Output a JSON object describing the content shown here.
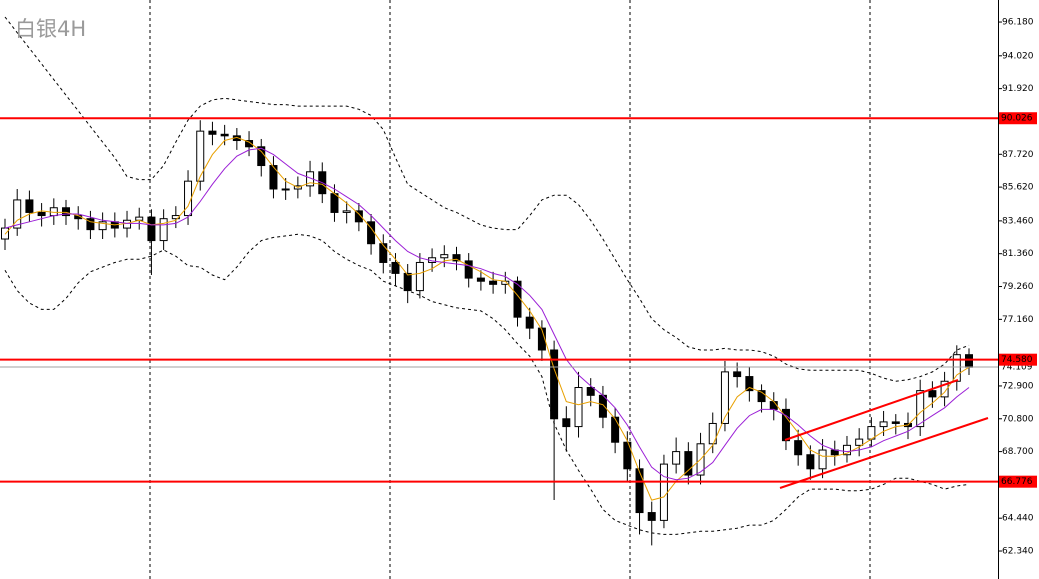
{
  "chart_data": {
    "type": "candlestick",
    "title": "白银4H",
    "ylim": [
      60.55,
      97.59
    ],
    "yticks": [
      {
        "value": 96.18,
        "label": "96.180"
      },
      {
        "value": 94.02,
        "label": "94.020"
      },
      {
        "value": 91.92,
        "label": "91.920"
      },
      {
        "value": 87.72,
        "label": "87.720"
      },
      {
        "value": 85.62,
        "label": "85.620"
      },
      {
        "value": 83.46,
        "label": "83.460"
      },
      {
        "value": 81.36,
        "label": "81.360"
      },
      {
        "value": 79.26,
        "label": "79.260"
      },
      {
        "value": 77.16,
        "label": "77.160"
      },
      {
        "value": 72.9,
        "label": "72.900"
      },
      {
        "value": 70.8,
        "label": "70.800"
      },
      {
        "value": 68.7,
        "label": "68.700"
      },
      {
        "value": 64.44,
        "label": "64.440"
      },
      {
        "value": 62.34,
        "label": "62.340"
      }
    ],
    "open": [
      82.3,
      83.0,
      84.8,
      84.0,
      83.8,
      84.3,
      83.8,
      83.6,
      82.9,
      83.4,
      83.0,
      83.5,
      83.7,
      82.2,
      83.6,
      83.8,
      86.0,
      89.2,
      89.0,
      88.9,
      88.6,
      88.2,
      87.0,
      85.5,
      85.5,
      85.7,
      86.6,
      85.2,
      84.0,
      84.1,
      83.4,
      82.0,
      80.8,
      80.1,
      79.0,
      80.8,
      81.1,
      81.3,
      80.9,
      79.8,
      79.6,
      79.4,
      79.6,
      77.3,
      76.6,
      75.2,
      70.8,
      70.3,
      72.8,
      72.3,
      70.9,
      69.3,
      67.6,
      64.8,
      64.3,
      67.9,
      68.7,
      67.2,
      69.2,
      70.5,
      73.8,
      73.5,
      72.6,
      71.9,
      71.4,
      69.4,
      68.5,
      67.6,
      68.8,
      68.5,
      69.1,
      69.5,
      70.3,
      70.6,
      70.5,
      70.3,
      72.6,
      72.2,
      73.2,
      74.9
    ],
    "high": [
      83.6,
      85.5,
      85.4,
      84.6,
      84.9,
      84.8,
      84.4,
      84.1,
      84.0,
      84.0,
      84.1,
      84.3,
      84.2,
      84.2,
      84.4,
      86.7,
      89.9,
      89.8,
      89.6,
      89.4,
      89.2,
      88.7,
      87.6,
      86.2,
      86.3,
      87.3,
      87.2,
      85.8,
      84.7,
      84.6,
      83.9,
      82.6,
      81.4,
      80.7,
      81.4,
      81.7,
      81.9,
      81.8,
      81.4,
      80.3,
      80.2,
      80.2,
      79.9,
      77.9,
      77.1,
      75.8,
      71.6,
      73.8,
      73.4,
      72.9,
      71.5,
      70.0,
      68.2,
      65.5,
      68.5,
      69.6,
      69.3,
      69.9,
      71.2,
      74.5,
      74.4,
      74.1,
      73.0,
      72.5,
      72.1,
      70.1,
      69.1,
      69.5,
      69.4,
      69.7,
      70.2,
      70.9,
      71.3,
      71.1,
      71.2,
      73.3,
      73.2,
      73.8,
      75.5,
      75.3
    ],
    "low": [
      81.6,
      82.5,
      83.4,
      83.1,
      83.2,
      83.2,
      82.9,
      82.3,
      82.3,
      82.4,
      82.4,
      82.9,
      80.0,
      81.6,
      83.0,
      83.2,
      85.4,
      88.3,
      88.3,
      88.0,
      87.6,
      86.3,
      84.9,
      84.8,
      84.9,
      85.0,
      84.6,
      83.4,
      83.3,
      82.8,
      81.3,
      80.1,
      79.3,
      78.2,
      78.5,
      80.2,
      80.5,
      80.3,
      79.2,
      79.0,
      78.8,
      78.8,
      76.7,
      75.9,
      74.5,
      65.6,
      68.7,
      69.6,
      71.6,
      70.2,
      68.6,
      66.8,
      63.4,
      62.7,
      63.8,
      67.3,
      66.6,
      66.6,
      68.6,
      70.0,
      72.8,
      71.9,
      71.2,
      70.7,
      68.8,
      67.8,
      66.9,
      67.0,
      67.8,
      68.0,
      68.4,
      69.0,
      69.7,
      69.8,
      69.5,
      69.7,
      71.5,
      71.6,
      72.6,
      73.6
    ],
    "close": [
      83.0,
      84.8,
      84.0,
      83.8,
      84.3,
      83.8,
      83.6,
      82.9,
      83.4,
      83.0,
      83.5,
      83.7,
      82.2,
      83.6,
      83.8,
      86.0,
      89.2,
      89.0,
      88.9,
      88.6,
      88.2,
      87.0,
      85.5,
      85.5,
      85.7,
      86.6,
      85.2,
      84.0,
      84.1,
      83.4,
      82.0,
      80.8,
      80.1,
      79.0,
      80.8,
      81.1,
      81.3,
      80.9,
      79.8,
      79.6,
      79.4,
      79.6,
      77.3,
      76.6,
      75.2,
      70.8,
      70.3,
      72.8,
      72.3,
      70.9,
      69.3,
      67.6,
      64.8,
      64.3,
      67.9,
      68.7,
      67.2,
      69.2,
      70.5,
      73.8,
      73.5,
      72.6,
      71.9,
      71.4,
      69.4,
      68.5,
      67.6,
      68.8,
      68.5,
      69.1,
      69.5,
      70.3,
      70.6,
      70.5,
      70.3,
      72.6,
      72.2,
      73.2,
      74.9,
      74.1
    ],
    "up_color": "#ffffff",
    "down_color": "#000000",
    "lines": [
      {
        "color": "#e8a000",
        "dashed": false,
        "values": [
          82.6,
          83.5,
          83.9,
          84.1,
          84.0,
          84.0,
          83.8,
          83.4,
          83.3,
          83.2,
          83.3,
          83.5,
          83.2,
          83.3,
          83.5,
          84.4,
          86.3,
          87.7,
          88.6,
          88.8,
          88.5,
          87.9,
          86.9,
          86.0,
          85.6,
          85.9,
          85.8,
          85.2,
          84.6,
          83.9,
          83.0,
          81.9,
          81.0,
          80.0,
          80.1,
          80.4,
          80.9,
          81.0,
          80.6,
          80.2,
          79.7,
          79.6,
          78.7,
          77.7,
          76.5,
          74.0,
          71.9,
          71.7,
          71.9,
          71.7,
          70.8,
          69.4,
          67.4,
          65.6,
          65.8,
          66.8,
          67.5,
          68.2,
          69.1,
          70.9,
          72.2,
          72.8,
          72.5,
          71.9,
          70.9,
          69.9,
          68.8,
          68.4,
          68.4,
          68.6,
          69.0,
          69.5,
          70.0,
          70.3,
          70.4,
          71.2,
          71.8,
          72.5,
          73.6,
          74.1
        ]
      },
      {
        "color": "#9b1fd6",
        "dashed": false,
        "values": [
          83.0,
          83.2,
          83.4,
          83.6,
          83.8,
          83.9,
          83.9,
          83.7,
          83.5,
          83.4,
          83.3,
          83.3,
          83.2,
          83.2,
          83.3,
          83.7,
          84.7,
          85.8,
          86.8,
          87.6,
          88.0,
          88.1,
          87.7,
          87.1,
          86.5,
          86.2,
          85.9,
          85.5,
          85.0,
          84.5,
          83.8,
          83.0,
          82.2,
          81.5,
          81.1,
          80.9,
          80.8,
          80.7,
          80.6,
          80.4,
          80.1,
          79.9,
          79.4,
          78.7,
          77.8,
          76.2,
          74.6,
          73.6,
          72.9,
          72.3,
          71.5,
          70.4,
          69.0,
          67.7,
          67.1,
          66.9,
          67.0,
          67.4,
          68.0,
          69.1,
          70.2,
          71.0,
          71.4,
          71.4,
          71.0,
          70.4,
          69.7,
          69.1,
          68.8,
          68.7,
          68.8,
          69.0,
          69.4,
          69.7,
          70.0,
          70.5,
          71.0,
          71.5,
          72.2,
          72.8
        ]
      },
      {
        "color": "#000000",
        "dashed": true,
        "values": [
          96.5,
          95.5,
          94.5,
          93.5,
          92.5,
          91.5,
          90.5,
          89.5,
          88.5,
          87.5,
          86.3,
          86.1,
          86.1,
          87.0,
          88.5,
          89.9,
          90.8,
          91.2,
          91.3,
          91.2,
          91.1,
          91.0,
          90.9,
          90.9,
          90.8,
          90.8,
          90.8,
          90.8,
          90.8,
          90.6,
          90.2,
          89.3,
          87.5,
          85.8,
          85.3,
          84.8,
          84.3,
          84.0,
          83.6,
          83.2,
          83.0,
          82.9,
          82.9,
          83.8,
          84.8,
          85.1,
          85.1,
          84.5,
          83.5,
          82.3,
          81.0,
          79.7,
          78.5,
          77.2,
          76.5,
          76.0,
          75.4,
          75.2,
          75.2,
          75.3,
          75.2,
          75.2,
          75.1,
          74.8,
          74.3,
          74.0,
          73.9,
          73.9,
          73.9,
          73.9,
          73.9,
          73.7,
          73.4,
          73.2,
          73.3,
          73.5,
          73.8,
          74.3,
          75.2,
          75.5
        ]
      },
      {
        "color": "#000000",
        "dashed": true,
        "values": [
          80.3,
          79.0,
          78.2,
          77.8,
          77.8,
          78.5,
          79.5,
          80.2,
          80.5,
          80.8,
          81.0,
          81.0,
          81.2,
          81.6,
          81.2,
          80.6,
          80.5,
          80.0,
          79.7,
          80.5,
          81.5,
          82.2,
          82.4,
          82.5,
          82.6,
          82.5,
          82.2,
          81.5,
          81.0,
          80.6,
          80.3,
          79.6,
          79.3,
          79.0,
          78.7,
          78.3,
          78.1,
          77.9,
          77.8,
          77.7,
          77.2,
          76.5,
          75.6,
          74.8,
          73.5,
          70.5,
          68.8,
          67.5,
          66.3,
          65.0,
          64.3,
          64.0,
          63.7,
          63.5,
          63.4,
          63.4,
          63.5,
          63.6,
          63.6,
          63.7,
          63.8,
          64.0,
          64.0,
          64.3,
          65.0,
          65.8,
          66.3,
          66.3,
          66.3,
          66.2,
          66.2,
          66.3,
          66.6,
          67.0,
          67.0,
          66.8,
          66.6,
          66.3,
          66.5,
          66.6
        ]
      }
    ],
    "levels": [
      90.026,
      {
        "value": 74.58,
        "label": "74.580"
      },
      66.776
    ],
    "level_color": "#ff0000",
    "last_price": 74.109,
    "last_price_color": "#a0a0a0"
  }
}
